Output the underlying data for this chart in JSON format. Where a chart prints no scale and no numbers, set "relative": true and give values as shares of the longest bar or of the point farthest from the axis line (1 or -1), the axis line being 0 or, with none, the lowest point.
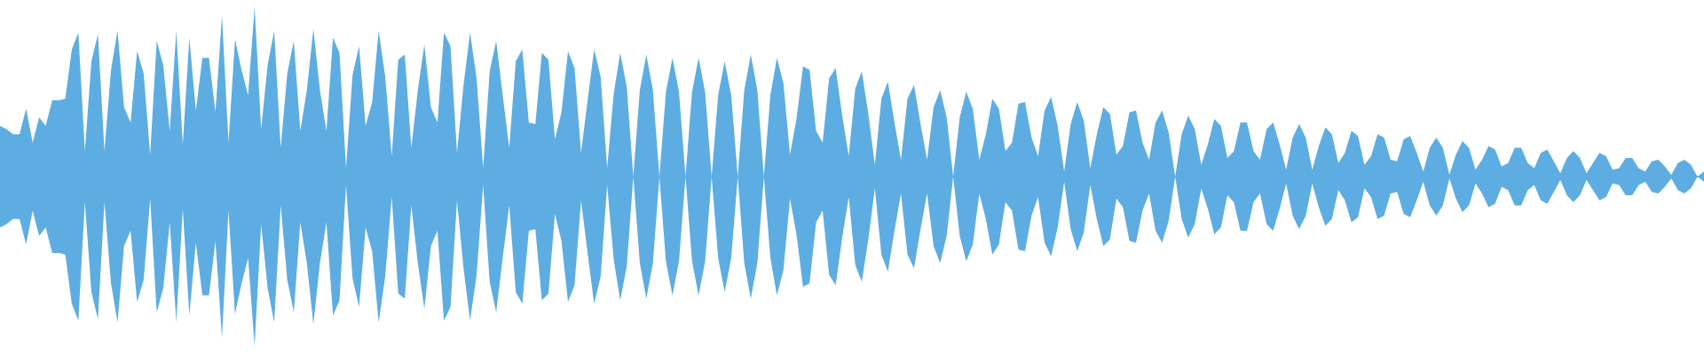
{
  "chart_data": {
    "type": "area",
    "relative": true,
    "tick_labels": false,
    "grid": false,
    "legend": false,
    "ref_lines": [
      {
        "axis": "y",
        "value": 0,
        "color": "#5dade2"
      }
    ],
    "categories": [
      null,
      null,
      null,
      null,
      null,
      null,
      null,
      null,
      null,
      null,
      null,
      null,
      null,
      null,
      null,
      null,
      null,
      null,
      null,
      null,
      null,
      null,
      null,
      null,
      null,
      null,
      null,
      null,
      null,
      null,
      null,
      null,
      null,
      null,
      null,
      null,
      null,
      null,
      null,
      null,
      null,
      null,
      null,
      null,
      null,
      null,
      null,
      null,
      null,
      null,
      null,
      null,
      null,
      null,
      null,
      null,
      null,
      null,
      null,
      null,
      null,
      null,
      null,
      null,
      null,
      null,
      null,
      null,
      null,
      null,
      null,
      null,
      null,
      null,
      null,
      null,
      null,
      null,
      null,
      null,
      null,
      null,
      null,
      null,
      null,
      null,
      null,
      null,
      null,
      null,
      null,
      null,
      null,
      null,
      null,
      null,
      null,
      null,
      null,
      null,
      null,
      null,
      null,
      null,
      null,
      null,
      null,
      null,
      null,
      null,
      null,
      null,
      null,
      null,
      null,
      null,
      null,
      null,
      null,
      null,
      null,
      null,
      null,
      null,
      null,
      null,
      null,
      null,
      null,
      null,
      null,
      null,
      null,
      null,
      null,
      null,
      null,
      null,
      null,
      null,
      null,
      null,
      null,
      null,
      null,
      null,
      null,
      null,
      null,
      null,
      null,
      null,
      null,
      null,
      null,
      null,
      null,
      null,
      null,
      null,
      null,
      null,
      null,
      null,
      null,
      null,
      null,
      null,
      null,
      null,
      null,
      null,
      null,
      null,
      null,
      null,
      null,
      null,
      null,
      null,
      null,
      null,
      null,
      null,
      null,
      null,
      null,
      null,
      null,
      null,
      null,
      null,
      null,
      null,
      null,
      null,
      null,
      null,
      null,
      null,
      null,
      null,
      null,
      null,
      null,
      null,
      null,
      null,
      null,
      null,
      null,
      null,
      null,
      null,
      null,
      null,
      null,
      null,
      null,
      null,
      null,
      null,
      null,
      null,
      null,
      null,
      null,
      null,
      null,
      null,
      null,
      null,
      null,
      null,
      null,
      null,
      null,
      null,
      null,
      null,
      null,
      null,
      null,
      null,
      null,
      null,
      null,
      null,
      null,
      null,
      null,
      null,
      null,
      null,
      null,
      null,
      null,
      null,
      null,
      null,
      null,
      null
    ],
    "series": [
      {
        "color": "#5dade2",
        "values": [
          0.3,
          0.28,
          0.25,
          0.25,
          0.4,
          0.2,
          0.35,
          0.3,
          0.45,
          0.45,
          0.46,
          0.75,
          0.85,
          0.15,
          0.68,
          0.84,
          0.15,
          0.63,
          0.86,
          0.41,
          0.32,
          0.74,
          0.61,
          0.13,
          0.8,
          0.66,
          0.27,
          0.86,
          0.19,
          0.82,
          0.39,
          0.7,
          0.7,
          0.38,
          0.95,
          0.2,
          0.81,
          0.63,
          0.48,
          1,
          0.28,
          0.66,
          0.86,
          0.17,
          0.61,
          0.8,
          0.27,
          0.51,
          0.87,
          0.51,
          0.27,
          0.82,
          0.73,
          0.05,
          0.6,
          0.77,
          0.3,
          0.44,
          0.86,
          0.59,
          0.12,
          0.69,
          0.72,
          0.17,
          0.51,
          0.78,
          0.41,
          0.32,
          0.85,
          0.77,
          0.14,
          0.54,
          0.85,
          0.58,
          0.05,
          0.62,
          0.8,
          0.48,
          0.17,
          0.68,
          0.75,
          0.32,
          0.31,
          0.73,
          0.69,
          0.22,
          0.38,
          0.74,
          0.64,
          0.14,
          0.45,
          0.75,
          0.59,
          0.05,
          0.49,
          0.73,
          0.53,
          0,
          0.51,
          0.72,
          0.51,
          0,
          0.5,
          0.7,
          0.5,
          0,
          0.5,
          0.7,
          0.5,
          0,
          0.48,
          0.68,
          0.48,
          0,
          0.51,
          0.72,
          0.51,
          0,
          0.48,
          0.7,
          0.55,
          0.13,
          0.34,
          0.65,
          0.63,
          0.27,
          0.2,
          0.58,
          0.64,
          0.36,
          0.12,
          0.52,
          0.62,
          0.37,
          0.07,
          0.46,
          0.56,
          0.32,
          0.1,
          0.46,
          0.54,
          0.31,
          0.1,
          0.41,
          0.51,
          0.35,
          0,
          0.35,
          0.5,
          0.4,
          0.1,
          0.25,
          0.46,
          0.4,
          0.15,
          0.2,
          0.43,
          0.44,
          0.23,
          0.12,
          0.39,
          0.47,
          0.3,
          0.03,
          0.31,
          0.44,
          0.33,
          0.05,
          0.25,
          0.41,
          0.37,
          0.13,
          0.18,
          0.38,
          0.39,
          0.2,
          0.1,
          0.32,
          0.39,
          0.26,
          0,
          0.25,
          0.36,
          0.28,
          0.07,
          0.19,
          0.34,
          0.3,
          0.11,
          0.15,
          0.32,
          0.32,
          0.15,
          0.1,
          0.28,
          0.32,
          0.19,
          0.04,
          0.23,
          0.31,
          0.23,
          0.04,
          0.18,
          0.29,
          0.25,
          0.08,
          0.14,
          0.27,
          0.24,
          0.07,
          0.12,
          0.25,
          0.23,
          0.1,
          0.09,
          0.22,
          0.24,
          0.14,
          0.03,
          0.17,
          0.23,
          0.17,
          0.01,
          0.13,
          0.21,
          0.17,
          0.04,
          0.1,
          0.18,
          0.16,
          0.06,
          0.08,
          0.17,
          0.17,
          0.08,
          0.05,
          0.14,
          0.16,
          0.09,
          0.02,
          0.11,
          0.15,
          0.11,
          0.02,
          0.08,
          0.14,
          0.12,
          0.04,
          0.05,
          0.11,
          0.11,
          0.05,
          0.03,
          0.09,
          0.1,
          0.06,
          0.01,
          0.08,
          0.1,
          0.07,
          0,
          0.03
        ]
      },
      {
        "color": "#5dade2",
        "values": [
          -0.3,
          -0.28,
          -0.25,
          -0.25,
          -0.4,
          -0.2,
          -0.35,
          -0.3,
          -0.45,
          -0.45,
          -0.46,
          -0.75,
          -0.85,
          -0.15,
          -0.68,
          -0.84,
          -0.15,
          -0.63,
          -0.86,
          -0.41,
          -0.32,
          -0.74,
          -0.61,
          -0.13,
          -0.8,
          -0.66,
          -0.27,
          -0.86,
          -0.19,
          -0.82,
          -0.39,
          -0.7,
          -0.7,
          -0.38,
          -0.95,
          -0.2,
          -0.81,
          -0.63,
          -0.48,
          -1,
          -0.28,
          -0.66,
          -0.86,
          -0.17,
          -0.61,
          -0.8,
          -0.27,
          -0.51,
          -0.87,
          -0.51,
          -0.27,
          -0.82,
          -0.73,
          -0.05,
          -0.6,
          -0.77,
          -0.3,
          -0.44,
          -0.86,
          -0.59,
          -0.12,
          -0.69,
          -0.72,
          -0.17,
          -0.51,
          -0.78,
          -0.41,
          -0.32,
          -0.85,
          -0.77,
          -0.14,
          -0.54,
          -0.85,
          -0.58,
          -0.05,
          -0.62,
          -0.8,
          -0.48,
          -0.17,
          -0.68,
          -0.75,
          -0.32,
          -0.31,
          -0.73,
          -0.69,
          -0.22,
          -0.38,
          -0.74,
          -0.64,
          -0.14,
          -0.45,
          -0.75,
          -0.59,
          -0.05,
          -0.49,
          -0.73,
          -0.53,
          0,
          -0.51,
          -0.72,
          -0.51,
          0,
          -0.5,
          -0.7,
          -0.5,
          0,
          -0.5,
          -0.7,
          -0.5,
          0,
          -0.48,
          -0.68,
          -0.48,
          0,
          -0.51,
          -0.72,
          -0.51,
          0,
          -0.48,
          -0.7,
          -0.55,
          -0.13,
          -0.34,
          -0.65,
          -0.63,
          -0.27,
          -0.2,
          -0.58,
          -0.64,
          -0.36,
          -0.12,
          -0.52,
          -0.62,
          -0.37,
          -0.07,
          -0.46,
          -0.56,
          -0.32,
          -0.1,
          -0.46,
          -0.54,
          -0.31,
          -0.1,
          -0.41,
          -0.51,
          -0.35,
          0,
          -0.35,
          -0.5,
          -0.4,
          -0.1,
          -0.25,
          -0.46,
          -0.4,
          -0.15,
          -0.2,
          -0.43,
          -0.44,
          -0.23,
          -0.12,
          -0.39,
          -0.47,
          -0.3,
          -0.03,
          -0.31,
          -0.44,
          -0.33,
          -0.05,
          -0.25,
          -0.41,
          -0.37,
          -0.13,
          -0.18,
          -0.38,
          -0.39,
          -0.2,
          -0.1,
          -0.32,
          -0.39,
          -0.26,
          0,
          -0.25,
          -0.36,
          -0.28,
          -0.07,
          -0.19,
          -0.34,
          -0.3,
          -0.11,
          -0.15,
          -0.32,
          -0.32,
          -0.15,
          -0.1,
          -0.28,
          -0.32,
          -0.19,
          -0.04,
          -0.23,
          -0.31,
          -0.23,
          -0.04,
          -0.18,
          -0.29,
          -0.25,
          -0.08,
          -0.14,
          -0.27,
          -0.24,
          -0.07,
          -0.12,
          -0.25,
          -0.23,
          -0.1,
          -0.09,
          -0.22,
          -0.24,
          -0.14,
          -0.03,
          -0.17,
          -0.23,
          -0.17,
          -0.01,
          -0.13,
          -0.21,
          -0.17,
          -0.04,
          -0.1,
          -0.18,
          -0.16,
          -0.06,
          -0.08,
          -0.17,
          -0.17,
          -0.08,
          -0.05,
          -0.14,
          -0.16,
          -0.09,
          -0.02,
          -0.11,
          -0.15,
          -0.11,
          -0.02,
          -0.08,
          -0.14,
          -0.12,
          -0.04,
          -0.05,
          -0.11,
          -0.11,
          -0.05,
          -0.03,
          -0.09,
          -0.1,
          -0.06,
          -0.01,
          -0.08,
          -0.1,
          -0.07,
          0,
          -0.03
        ]
      }
    ]
  }
}
